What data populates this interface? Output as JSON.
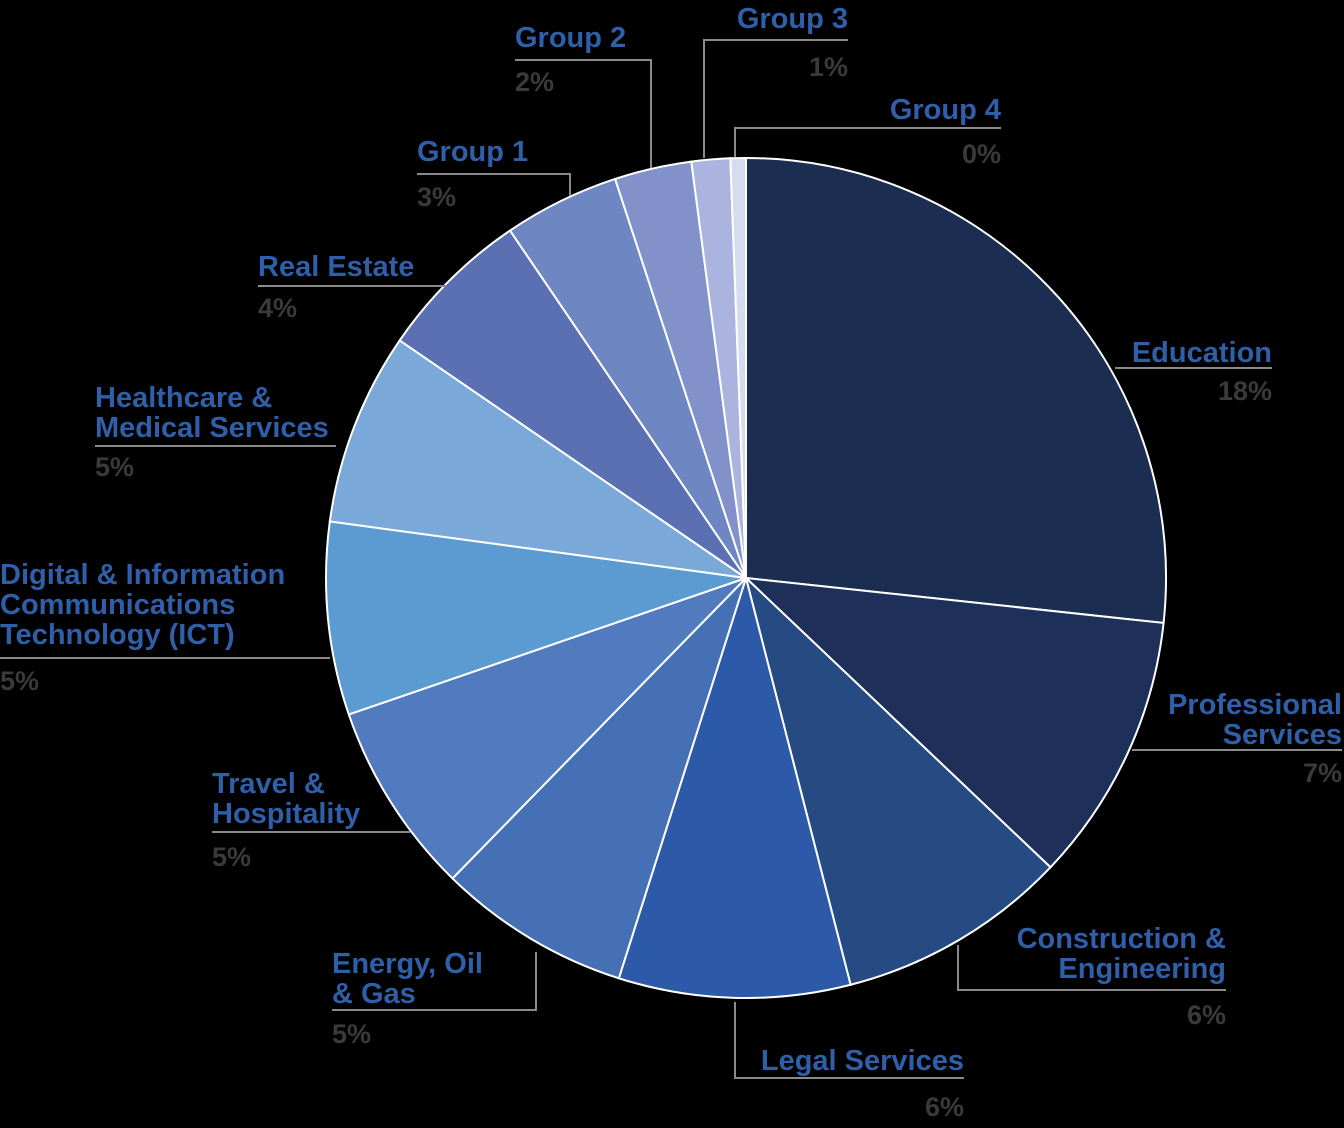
{
  "chart_data": {
    "type": "pie",
    "title": "",
    "label_color": "#2e5fa8",
    "value_color": "#3a3a3a",
    "background": "#000000",
    "slices": [
      {
        "label": "Education",
        "value": 18,
        "value_label": "18%",
        "color": "#1b2d50"
      },
      {
        "label": "Professional Services",
        "value": 7,
        "value_label": "7%",
        "color": "#1e3059"
      },
      {
        "label": "Construction & Engineering",
        "value": 6,
        "value_label": "6%",
        "color": "#264a82"
      },
      {
        "label": "Legal Services",
        "value": 6,
        "value_label": "6%",
        "color": "#2d5aa8"
      },
      {
        "label": "Energy, Oil & Gas",
        "value": 5,
        "value_label": "5%",
        "color": "#4670b6"
      },
      {
        "label": "Travel & Hospitality",
        "value": 5,
        "value_label": "5%",
        "color": "#527bbf"
      },
      {
        "label": "Digital & Information Communications Technology (ICT)",
        "value": 5,
        "value_label": "5%",
        "color": "#5b9bd2"
      },
      {
        "label": "Healthcare & Medical Services",
        "value": 5,
        "value_label": "5%",
        "color": "#7aa8d8"
      },
      {
        "label": "Real Estate",
        "value": 4,
        "value_label": "4%",
        "color": "#5a70b3"
      },
      {
        "label": "Group 1",
        "value": 3,
        "value_label": "3%",
        "color": "#6e87c2"
      },
      {
        "label": "Group 2",
        "value": 2,
        "value_label": "2%",
        "color": "#8291c9"
      },
      {
        "label": "Group 3",
        "value": 1,
        "value_label": "1%",
        "color": "#aab4de"
      },
      {
        "label": "Group 4",
        "value": 0.4,
        "value_label": "0%",
        "color": "#d6dcf0"
      }
    ]
  }
}
